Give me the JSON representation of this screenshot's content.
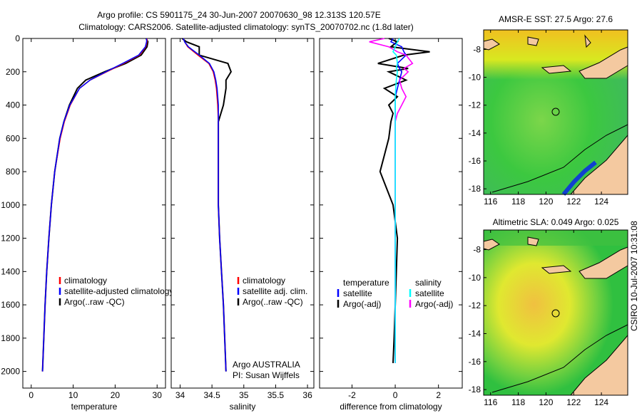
{
  "title_line1": "Argo profile: CS 5901175_24 30-Jun-2007 20070630_98 12.313S 120.57E",
  "title_line2": "Climatology: CARS2006. Satellite-adjusted climatology: synTS_20070702.nc (1.8d later)",
  "credit": "CSIRO 10-Jul-2007 10:31:08",
  "colors": {
    "climatology": "#ff0000",
    "satellite": "#0000ff",
    "argo": "#000000",
    "sal_satellite": "#00ffff",
    "sal_argo": "#ff00ff"
  },
  "chart_data": [
    {
      "type": "line",
      "title": "",
      "xlabel": "temperature",
      "ylabel": "",
      "xlim": [
        -2,
        32
      ],
      "ylim": [
        2000,
        0
      ],
      "xticks": [
        "0",
        "10",
        "20",
        "30"
      ],
      "xtick_values": [
        0,
        10,
        20,
        30
      ],
      "yticks": [
        "0",
        "200",
        "400",
        "600",
        "800",
        "1000",
        "1200",
        "1400",
        "1600",
        "1800",
        "2000"
      ],
      "depth": [
        0,
        20,
        50,
        100,
        150,
        200,
        250,
        300,
        400,
        500,
        600,
        800,
        1000,
        1200,
        1400,
        1600,
        1800,
        2000
      ],
      "series": [
        {
          "name": "climatology",
          "values": [
            27.6,
            27.6,
            27.3,
            25.8,
            22,
            18,
            14,
            11.5,
            9.3,
            7.9,
            6.9,
            5.6,
            4.8,
            4.2,
            3.7,
            3.3,
            3.0,
            2.7
          ]
        },
        {
          "name": "satellite-adjusted climatology",
          "values": [
            27.5,
            27.5,
            27.2,
            25.6,
            21.8,
            17.8,
            14,
            11.5,
            9.2,
            7.8,
            6.8,
            5.6,
            4.8,
            4.2,
            3.7,
            3.3,
            3.0,
            2.7
          ]
        },
        {
          "name": "Argo(..raw -QC)",
          "values": [
            27.4,
            27.8,
            27.6,
            26.2,
            22.5,
            17.5,
            13,
            11,
            9.1,
            7.8,
            6.8,
            5.6,
            4.8,
            4.2,
            3.7,
            3.3,
            3.0,
            2.7
          ]
        }
      ],
      "legend": [
        "climatology",
        "satellite-adjusted climatology",
        "Argo(..raw -QC)"
      ],
      "legend_position": "bottom-right"
    },
    {
      "type": "line",
      "xlabel": "salinity",
      "xlim": [
        33.86,
        36.1
      ],
      "ylim": [
        2000,
        0
      ],
      "xticks": [
        "34",
        "34.5",
        "35",
        "35.5",
        "36"
      ],
      "xtick_values": [
        34,
        34.5,
        35,
        35.5,
        36
      ],
      "depth": [
        0,
        20,
        50,
        100,
        150,
        200,
        250,
        300,
        350,
        400,
        500,
        600,
        800,
        1000,
        1200,
        1400,
        1600,
        1800,
        2000
      ],
      "series": [
        {
          "name": "climatology",
          "values": [
            34.05,
            34.07,
            34.12,
            34.28,
            34.45,
            34.52,
            34.55,
            34.57,
            34.58,
            34.59,
            34.6,
            34.6,
            34.6,
            34.6,
            34.62,
            34.65,
            34.68,
            34.7,
            34.72
          ]
        },
        {
          "name": "satellite adj. clim.",
          "values": [
            34.05,
            34.07,
            34.13,
            34.3,
            34.46,
            34.53,
            34.56,
            34.58,
            34.59,
            34.6,
            34.6,
            34.6,
            34.6,
            34.6,
            34.62,
            34.65,
            34.68,
            34.7,
            34.72
          ]
        },
        {
          "name": "Argo(..raw -QC)",
          "values": [
            34.03,
            34.1,
            34.3,
            34.3,
            34.75,
            34.8,
            34.72,
            34.72,
            34.7,
            34.68,
            34.6,
            34.6,
            34.6,
            34.6,
            34.62,
            34.65,
            34.68,
            34.7,
            34.72
          ]
        }
      ],
      "legend": [
        "climatology",
        "satellite adj. clim.",
        "Argo(..raw -QC)"
      ],
      "legend_position": "bottom-right",
      "annotation": [
        "Argo AUSTRALIA",
        "PI: Susan Wijffels"
      ]
    },
    {
      "type": "line",
      "xlabel": "difference from climatology",
      "xlim": [
        -3.5,
        3.1
      ],
      "ylim": [
        2000,
        0
      ],
      "xticks": [
        "-2",
        "0",
        "2"
      ],
      "xtick_values": [
        -2,
        0,
        2
      ],
      "depth": [
        0,
        20,
        50,
        80,
        100,
        150,
        180,
        200,
        250,
        300,
        350,
        400,
        450,
        500,
        600,
        700,
        800,
        1000,
        1200,
        1400,
        1600,
        1800,
        1950
      ],
      "series": [
        {
          "name": "temperature satellite",
          "values": [
            -0.1,
            -0.2,
            0.3,
            0.4,
            0.5,
            0.1,
            0.2,
            0.3,
            0.2,
            0.1,
            0,
            0,
            0,
            0,
            0,
            0,
            0,
            0,
            0,
            0,
            0,
            0,
            0
          ]
        },
        {
          "name": "temperature Argo(-adj)",
          "values": [
            -0.3,
            0.1,
            -0.2,
            1.6,
            0.4,
            -0.8,
            0.6,
            -0.3,
            0.5,
            -0.5,
            0.1,
            -0.3,
            -0.1,
            -0.2,
            -0.3,
            -0.5,
            -0.7,
            -0.1,
            0.1,
            0.05,
            0.0,
            -0.05,
            -0.1
          ]
        },
        {
          "name": "salinity satellite",
          "values": [
            0.2,
            0.1,
            0,
            -0.1,
            0.05,
            0.1,
            0.05,
            0.1,
            0.05,
            0.02,
            0,
            0,
            0,
            0,
            0,
            0,
            0,
            0,
            0,
            0,
            0,
            0,
            0
          ]
        },
        {
          "name": "salinity Argo(-adj)",
          "values": [
            -0.5,
            -1.2,
            -0.3,
            0.1,
            0.5,
            0.8,
            0.4,
            0.6,
            0.2,
            0.3,
            0.5,
            0.3,
            0.1,
            0,
            0,
            0,
            0,
            0,
            0,
            0,
            0,
            0,
            0
          ]
        }
      ],
      "legend_left": {
        "header": "temperature",
        "items": [
          "satellite",
          "Argo(-adj)"
        ]
      },
      "legend_right": {
        "header": "salinity",
        "items": [
          "satellite",
          "Argo(-adj)"
        ]
      }
    },
    {
      "type": "heatmap",
      "title": "AMSR-E SST: 27.5 Argo: 27.6",
      "xticks": [
        "116",
        "118",
        "120",
        "122",
        "124"
      ],
      "yticks": [
        "-8",
        "-10",
        "-12",
        "-14",
        "-16",
        "-18"
      ],
      "xlim": [
        115.5,
        125.9
      ],
      "ylim": [
        -18.4,
        -6.6
      ],
      "marker": [
        120.57,
        -12.313
      ]
    },
    {
      "type": "heatmap",
      "title": "Altimetric SLA: 0.049 Argo: 0.025",
      "xticks": [
        "116",
        "118",
        "120",
        "122",
        "124"
      ],
      "yticks": [
        "-8",
        "-10",
        "-12",
        "-14",
        "-16",
        "-18"
      ],
      "xlim": [
        115.5,
        125.9
      ],
      "ylim": [
        -18.4,
        -6.6
      ],
      "marker": [
        120.57,
        -12.313
      ]
    }
  ]
}
